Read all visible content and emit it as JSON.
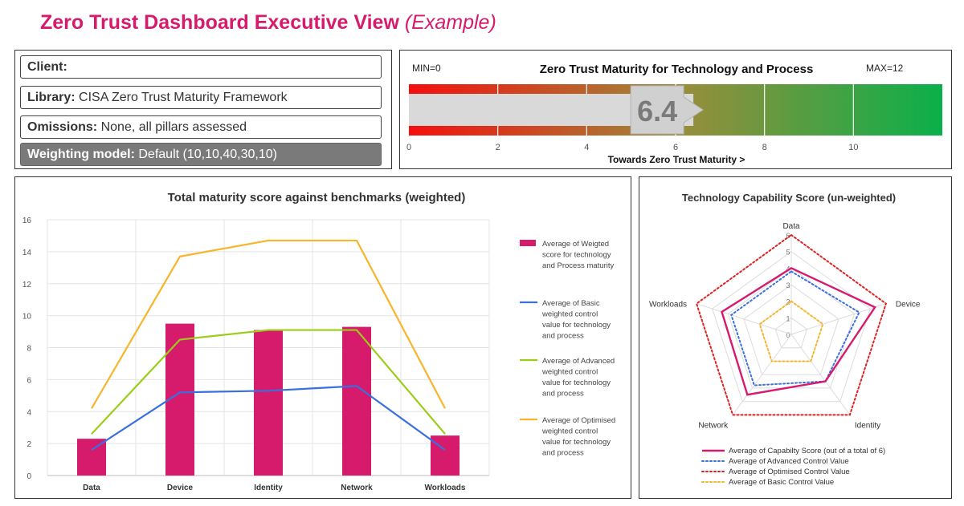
{
  "page": {
    "title": "Zero Trust Dashboard Executive View",
    "subtitle": "(Example)"
  },
  "info": {
    "client_label": "Client:",
    "client_value": "",
    "library_label": "Library:",
    "library_value": "CISA Zero Trust Maturity Framework",
    "omissions_label": "Omissions:",
    "omissions_value": "None, all pillars assessed",
    "weighting_label": "Weighting model:",
    "weighting_value": "Default (10,10,40,30,10)"
  },
  "colors": {
    "accent": "#d61a6c",
    "blue": "#3a6fe0",
    "green": "#9ccc1a",
    "orange": "#f7b52b",
    "red": "#e02020"
  },
  "chart_data": [
    {
      "type": "gauge",
      "title": "Zero Trust Maturity for Technology and Process",
      "min_label": "MIN=0",
      "max_label": "MAX=12",
      "min": 0,
      "max": 12,
      "value": 6.4,
      "value_label": "6.4",
      "ticks": [
        0,
        2,
        4,
        6,
        8,
        10
      ],
      "xlabel": "Towards Zero Trust Maturity >"
    },
    {
      "type": "bar",
      "title": "Total maturity score against benchmarks (weighted)",
      "categories": [
        "Data",
        "Device",
        "Identity",
        "Network",
        "Workloads"
      ],
      "ylim": [
        0,
        16
      ],
      "yticks": [
        0,
        2,
        4,
        6,
        8,
        10,
        12,
        14,
        16
      ],
      "series": [
        {
          "name": "Average of Weigted score for technology and Process  maturity",
          "kind": "bar",
          "color": "#d61a6c",
          "values": [
            2.3,
            9.5,
            9.1,
            9.3,
            2.5
          ]
        },
        {
          "name": "Average of Basic weighted control value for technology and process",
          "kind": "line",
          "color": "#3a6fe0",
          "values": [
            1.6,
            5.2,
            5.3,
            5.6,
            1.6
          ]
        },
        {
          "name": "Average of Advanced weighted control value for technology and process",
          "kind": "line",
          "color": "#9ccc1a",
          "values": [
            2.6,
            8.5,
            9.1,
            9.1,
            2.6
          ]
        },
        {
          "name": "Average of Optimised weighted control value for technology and process",
          "kind": "line",
          "color": "#f7b52b",
          "values": [
            4.2,
            13.7,
            14.7,
            14.7,
            4.2
          ]
        }
      ]
    },
    {
      "type": "radar",
      "title": "Technology Capability Score (un-weighted)",
      "axes": [
        "Data",
        "Device",
        "Identity",
        "Network",
        "Workloads"
      ],
      "rmax": 6,
      "rticks": [
        0,
        1,
        2,
        3,
        4,
        5,
        6
      ],
      "series": [
        {
          "name": "Average of Capabilty Score (out of a total of 6)",
          "style": "solid",
          "color": "#d61a6c",
          "values": [
            4,
            5.3,
            3.5,
            4.5,
            4.4
          ]
        },
        {
          "name": "Average of Advanced Control Value",
          "style": "dotted",
          "color": "#3a6fe0",
          "values": [
            3.8,
            4.3,
            3.5,
            3.8,
            3.8
          ]
        },
        {
          "name": "Average of Optimised Control Value",
          "style": "dotted",
          "color": "#e02020",
          "values": [
            6,
            6,
            6,
            6,
            6
          ]
        },
        {
          "name": "Average of Basic Control Value",
          "style": "dotted",
          "color": "#f7b52b",
          "values": [
            2,
            2,
            2,
            2,
            2
          ]
        }
      ]
    }
  ]
}
